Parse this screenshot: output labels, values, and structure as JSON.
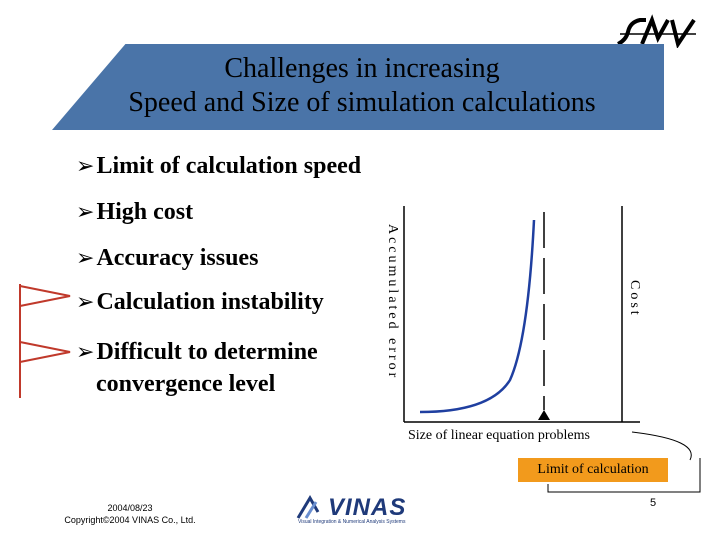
{
  "title": {
    "line1": "Challenges in increasing",
    "line2": "Speed and Size of simulation calculations"
  },
  "bullets": [
    "Limit of calculation speed",
    "High cost",
    "Accuracy issues",
    "Calculation instability",
    "Difficult to determine"
  ],
  "bullet_continuation": "convergence level",
  "chart": {
    "y_label": "Accumulated error",
    "y2_label": "Cost",
    "x_label": "Size of linear equation problems",
    "limit_label": "Limit of calculation"
  },
  "footer": {
    "date": "2004/08/23",
    "copyright": "Copyright©2004 VINAS Co., Ltd.",
    "page_number": "5",
    "company": "VINAS",
    "tagline": "Visual Integration & Numerical Analysis Systems"
  },
  "colors": {
    "banner": "#4a74a8",
    "curve": "#1f3fa0",
    "limit_box": "#f29a1c",
    "flag": "#c0392b"
  },
  "icons": {
    "bullet": "arrow-bullet-icon",
    "flag": "red-flag-icon",
    "brand": "smt-logo-icon"
  }
}
